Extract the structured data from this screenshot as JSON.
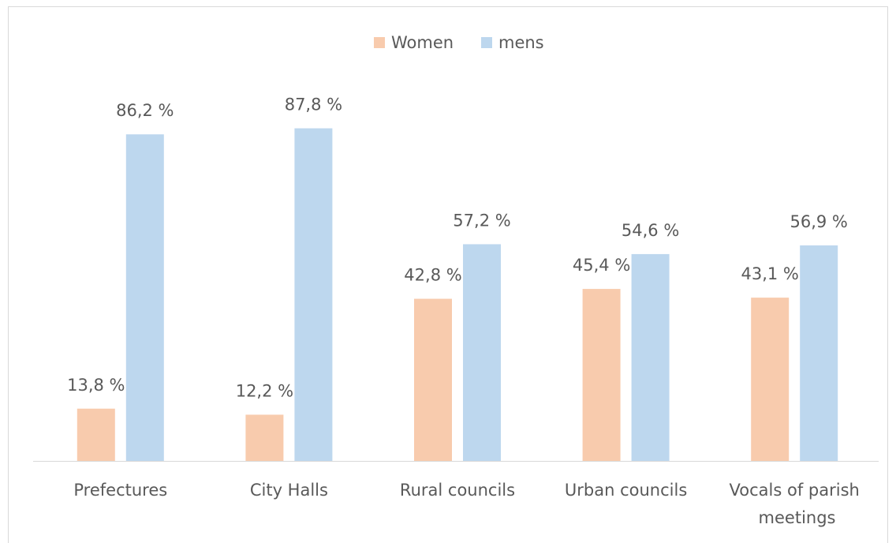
{
  "chart_data": {
    "type": "bar",
    "categories": [
      "Prefectures",
      "City Halls",
      "Rural councils",
      "Urban councils",
      "Vocals of parish meetings"
    ],
    "series": [
      {
        "name": "Women",
        "color": "#f8cbad",
        "values": [
          13.8,
          12.2,
          42.8,
          45.4,
          43.1
        ],
        "value_labels": [
          "13,8 %",
          "12,2 %",
          "42,8 %",
          "45,4 %",
          "43,1 %"
        ]
      },
      {
        "name": "mens",
        "color": "#bdd7ee",
        "values": [
          86.2,
          87.8,
          57.2,
          54.6,
          56.9
        ],
        "value_labels": [
          "86,2 %",
          "87,8 %",
          "57,2 %",
          "54,6  %",
          "56,9 %"
        ]
      }
    ],
    "ylim": [
      0,
      100
    ],
    "legend": "top"
  }
}
